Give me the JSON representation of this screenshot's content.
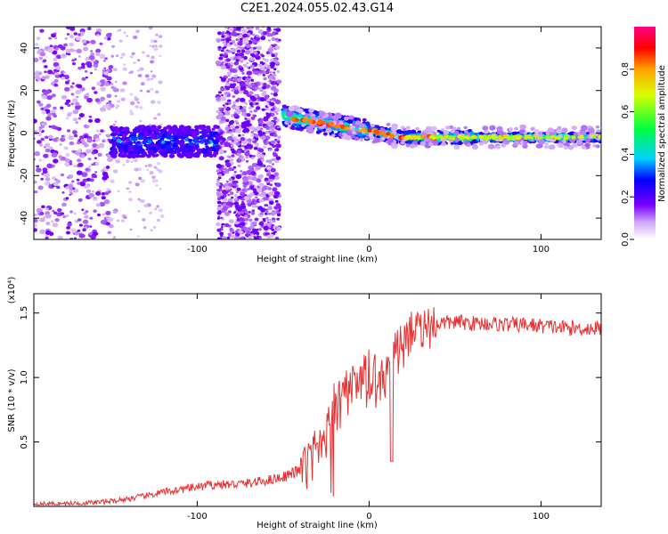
{
  "title": "C2E1.2024.055.02.43.G14",
  "colors": {
    "snr_line": "#e83030",
    "axis": "#000000",
    "background": "#ffffff"
  },
  "chart_data": [
    {
      "type": "heatmap",
      "xlabel": "Height of straight line (km)",
      "ylabel": "Frequency (Hz)",
      "xlim": [
        -195,
        135
      ],
      "ylim": [
        -50,
        50
      ],
      "xticks": [
        -100,
        0,
        100
      ],
      "yticks": [
        -40,
        -20,
        0,
        20,
        40
      ],
      "colorbar": {
        "label": "Normalized spectral amplitude",
        "range": [
          0,
          1
        ],
        "ticks": [
          "0.0",
          "0.2",
          "0.4",
          "0.6",
          "0.8"
        ]
      },
      "features": [
        {
          "x_range": [
            -195,
            -150
          ],
          "description": "sparse purple speckle across all frequencies"
        },
        {
          "x_range": [
            -150,
            -90
          ],
          "freq_center": -4,
          "description": "blue/cyan band near 0 Hz"
        },
        {
          "x_range": [
            -88,
            -52
          ],
          "description": "dense purple broadband noise across all frequencies"
        },
        {
          "x_range": [
            -50,
            135
          ],
          "freq_center_start": 8,
          "freq_center_end": -2,
          "description": "narrow band with red peaks, flattening toward -2 Hz"
        }
      ]
    },
    {
      "type": "line",
      "xlabel": "Height of straight line (km)",
      "ylabel": "SNR (10 * v/v)",
      "y_multiplier": "(x10⁴)",
      "xlim": [
        -195,
        135
      ],
      "ylim": [
        0,
        1.65
      ],
      "xticks": [
        -100,
        0,
        100
      ],
      "yticks": [
        0.5,
        1.0,
        1.5
      ],
      "ytick_labels": [
        "0.5",
        "1.0",
        "1.5"
      ],
      "series": [
        {
          "x": [
            -195,
            -180,
            -160,
            -150,
            -140,
            -130,
            -120,
            -110,
            -100,
            -90,
            -80,
            -70,
            -60,
            -50,
            -40,
            -35,
            -30,
            -25,
            -20,
            -15,
            -10,
            -5,
            0,
            5,
            10,
            15,
            20,
            25,
            30,
            35,
            40,
            50,
            60,
            70,
            80,
            90,
            100,
            110,
            120,
            130,
            135
          ],
          "y": [
            0.02,
            0.02,
            0.03,
            0.04,
            0.06,
            0.08,
            0.11,
            0.13,
            0.15,
            0.17,
            0.17,
            0.18,
            0.2,
            0.23,
            0.28,
            0.33,
            0.45,
            0.6,
            0.75,
            0.82,
            0.88,
            0.93,
            0.98,
            1.02,
            1.06,
            1.15,
            1.25,
            1.33,
            1.38,
            1.4,
            1.42,
            1.43,
            1.42,
            1.42,
            1.41,
            1.41,
            1.4,
            1.39,
            1.38,
            1.38,
            1.38
          ]
        }
      ]
    }
  ]
}
